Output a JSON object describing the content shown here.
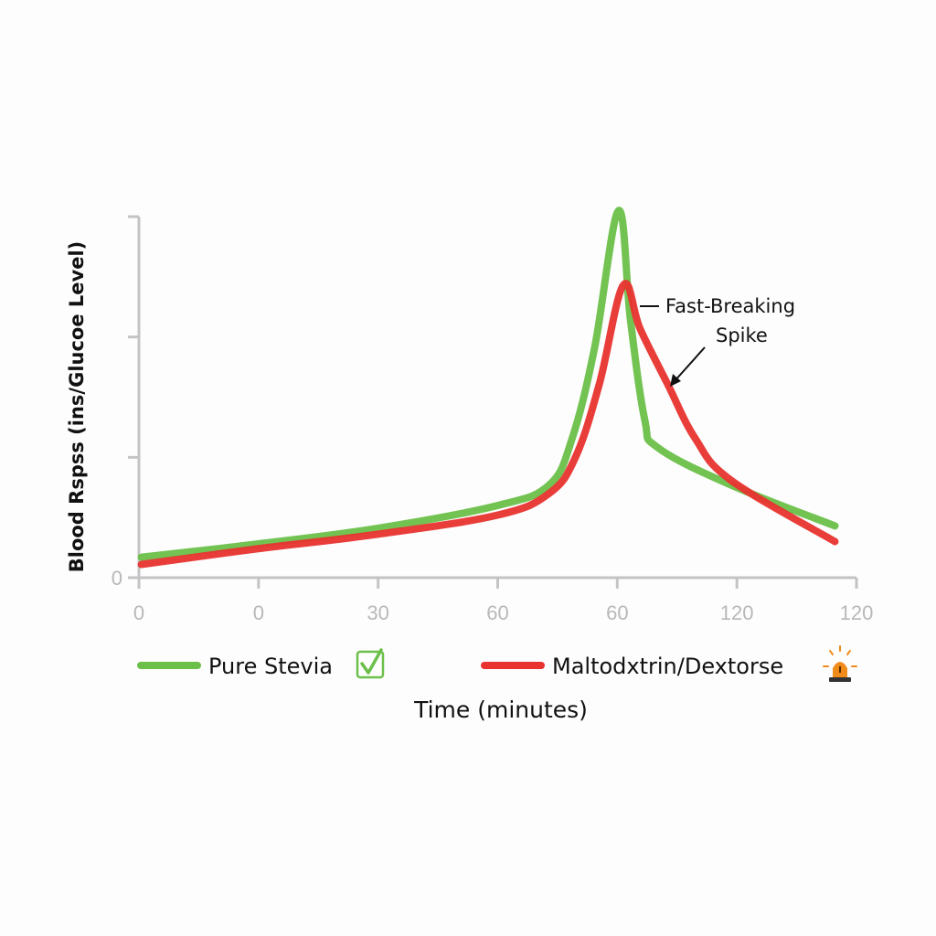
{
  "chart_data": {
    "type": "line",
    "title": "",
    "xlabel": "Time (minutes)",
    "ylabel": "Blood Rspss (ins/Glucoe Level)",
    "x_tick_labels": [
      "0",
      "0",
      "30",
      "60",
      "60",
      "120",
      "120"
    ],
    "y_tick_labels": [
      "0",
      "",
      "",
      ""
    ],
    "xlim": [
      0,
      6
    ],
    "ylim": [
      0,
      3
    ],
    "grid": false,
    "legend_position": "bottom",
    "series": [
      {
        "name": "Pure Stevia",
        "color": "#6cc04a",
        "icon": "check-box-icon",
        "x": [
          0.02,
          0.99,
          1.99,
          3.0,
          3.43,
          3.62,
          3.81,
          4.01,
          4.11,
          4.23,
          4.34,
          4.95,
          5.82
        ],
        "y": [
          0.17,
          0.28,
          0.41,
          0.6,
          0.77,
          1.15,
          1.91,
          3.05,
          2.14,
          1.31,
          1.08,
          0.77,
          0.43
        ]
      },
      {
        "name": "Maltodxtrin/Dextorse",
        "color": "#e8332f",
        "icon": "siren-icon",
        "x": [
          0.02,
          0.99,
          1.99,
          3.0,
          3.43,
          3.65,
          3.85,
          4.05,
          4.19,
          4.42,
          4.65,
          4.95,
          5.82
        ],
        "y": [
          0.11,
          0.24,
          0.36,
          0.52,
          0.7,
          1.0,
          1.61,
          2.43,
          2.07,
          1.61,
          1.16,
          0.81,
          0.3
        ]
      }
    ],
    "annotations": [
      {
        "text_lines": [
          "Fast-Breaking",
          "Spike"
        ],
        "target_series": "Maltodxtrin/Dextorse"
      }
    ]
  }
}
